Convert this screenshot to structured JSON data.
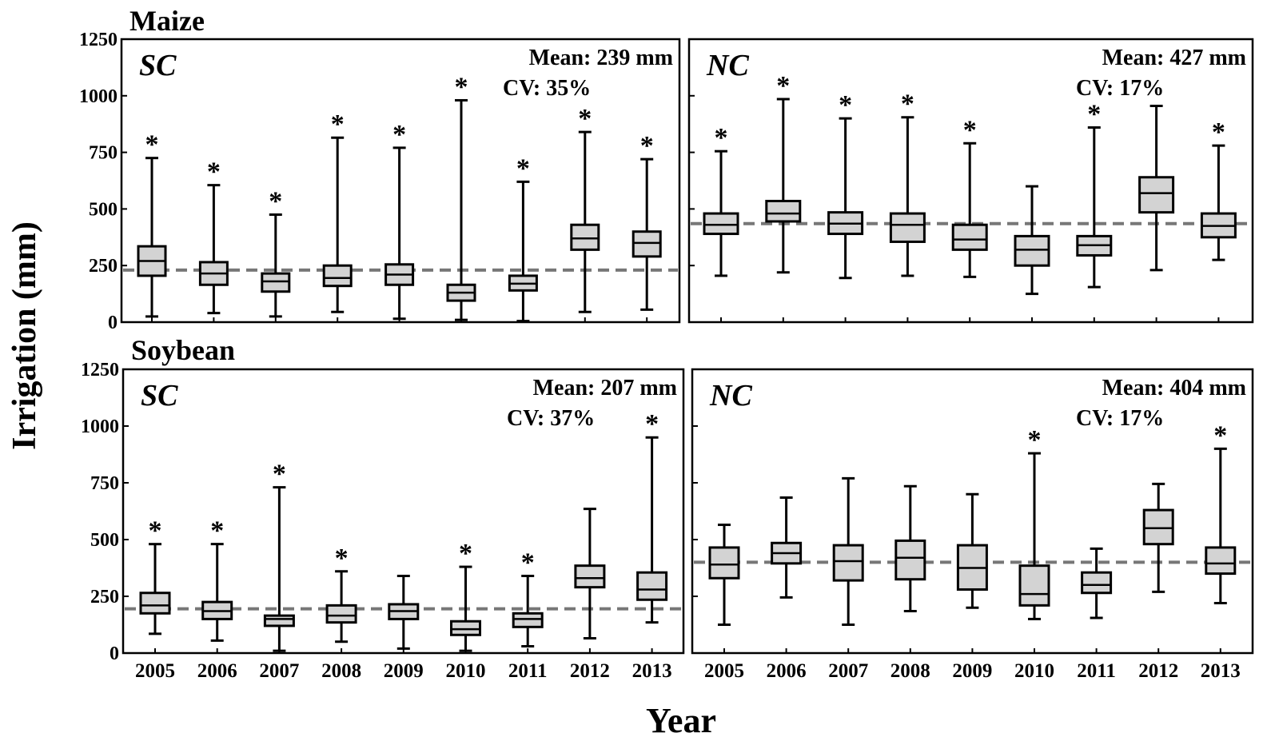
{
  "figure": {
    "ylabel": "Irrigation (mm)",
    "xlabel": "Year",
    "row_titles": [
      "Maize",
      "Soybean"
    ],
    "years": [
      "2005",
      "2006",
      "2007",
      "2008",
      "2009",
      "2010",
      "2011",
      "2012",
      "2013"
    ],
    "yticks": [
      "0",
      "250",
      "500",
      "750",
      "1000",
      "1250"
    ],
    "outlier_marker": "*"
  },
  "chart_data": [
    {
      "type": "box",
      "crop": "Maize",
      "region": "SC",
      "mean_text": "Mean: 239 mm",
      "cv_text": "CV: 35%",
      "mean_line": 230,
      "ylim": [
        0,
        1250
      ],
      "boxes": [
        {
          "year": "2005",
          "min": 25,
          "q1": 205,
          "median": 270,
          "q3": 335,
          "max": 725,
          "outlier": true
        },
        {
          "year": "2006",
          "min": 40,
          "q1": 165,
          "median": 215,
          "q3": 265,
          "max": 605,
          "outlier": true
        },
        {
          "year": "2007",
          "min": 25,
          "q1": 135,
          "median": 180,
          "q3": 215,
          "max": 475,
          "outlier": true
        },
        {
          "year": "2008",
          "min": 45,
          "q1": 160,
          "median": 195,
          "q3": 250,
          "max": 815,
          "outlier": true
        },
        {
          "year": "2009",
          "min": 15,
          "q1": 165,
          "median": 210,
          "q3": 255,
          "max": 770,
          "outlier": true
        },
        {
          "year": "2010",
          "min": 10,
          "q1": 95,
          "median": 130,
          "q3": 165,
          "max": 980,
          "outlier": true
        },
        {
          "year": "2011",
          "min": 5,
          "q1": 140,
          "median": 170,
          "q3": 205,
          "max": 620,
          "outlier": true
        },
        {
          "year": "2012",
          "min": 45,
          "q1": 320,
          "median": 370,
          "q3": 430,
          "max": 840,
          "outlier": true
        },
        {
          "year": "2013",
          "min": 55,
          "q1": 290,
          "median": 350,
          "q3": 400,
          "max": 720,
          "outlier": true
        }
      ]
    },
    {
      "type": "box",
      "crop": "Maize",
      "region": "NC",
      "mean_text": "Mean: 427 mm",
      "cv_text": "CV: 17%",
      "mean_line": 435,
      "ylim": [
        0,
        1250
      ],
      "boxes": [
        {
          "year": "2005",
          "min": 205,
          "q1": 390,
          "median": 430,
          "q3": 480,
          "max": 755,
          "outlier": true
        },
        {
          "year": "2006",
          "min": 220,
          "q1": 445,
          "median": 480,
          "q3": 535,
          "max": 985,
          "outlier": true
        },
        {
          "year": "2007",
          "min": 195,
          "q1": 390,
          "median": 435,
          "q3": 485,
          "max": 900,
          "outlier": true
        },
        {
          "year": "2008",
          "min": 205,
          "q1": 355,
          "median": 430,
          "q3": 480,
          "max": 905,
          "outlier": true
        },
        {
          "year": "2009",
          "min": 200,
          "q1": 320,
          "median": 365,
          "q3": 430,
          "max": 790,
          "outlier": true
        },
        {
          "year": "2010",
          "min": 125,
          "q1": 250,
          "median": 320,
          "q3": 380,
          "max": 600,
          "outlier": false
        },
        {
          "year": "2011",
          "min": 155,
          "q1": 295,
          "median": 340,
          "q3": 380,
          "max": 860,
          "outlier": true
        },
        {
          "year": "2012",
          "min": 230,
          "q1": 485,
          "median": 570,
          "q3": 640,
          "max": 955,
          "outlier": false
        },
        {
          "year": "2013",
          "min": 275,
          "q1": 375,
          "median": 425,
          "q3": 480,
          "max": 780,
          "outlier": true
        }
      ]
    },
    {
      "type": "box",
      "crop": "Soybean",
      "region": "SC",
      "mean_text": "Mean: 207 mm",
      "cv_text": "CV: 37%",
      "mean_line": 195,
      "ylim": [
        0,
        1250
      ],
      "boxes": [
        {
          "year": "2005",
          "min": 85,
          "q1": 175,
          "median": 210,
          "q3": 265,
          "max": 480,
          "outlier": true
        },
        {
          "year": "2006",
          "min": 55,
          "q1": 150,
          "median": 185,
          "q3": 225,
          "max": 480,
          "outlier": true
        },
        {
          "year": "2007",
          "min": 10,
          "q1": 120,
          "median": 150,
          "q3": 165,
          "max": 730,
          "outlier": true
        },
        {
          "year": "2008",
          "min": 50,
          "q1": 135,
          "median": 165,
          "q3": 210,
          "max": 360,
          "outlier": true
        },
        {
          "year": "2009",
          "min": 20,
          "q1": 150,
          "median": 185,
          "q3": 215,
          "max": 340,
          "outlier": false
        },
        {
          "year": "2010",
          "min": 10,
          "q1": 80,
          "median": 105,
          "q3": 140,
          "max": 380,
          "outlier": true
        },
        {
          "year": "2011",
          "min": 30,
          "q1": 115,
          "median": 150,
          "q3": 175,
          "max": 340,
          "outlier": true
        },
        {
          "year": "2012",
          "min": 65,
          "q1": 290,
          "median": 330,
          "q3": 385,
          "max": 635,
          "outlier": false
        },
        {
          "year": "2013",
          "min": 135,
          "q1": 235,
          "median": 280,
          "q3": 355,
          "max": 950,
          "outlier": true
        }
      ]
    },
    {
      "type": "box",
      "crop": "Soybean",
      "region": "NC",
      "mean_text": "Mean: 404 mm",
      "cv_text": "CV: 17%",
      "mean_line": 400,
      "ylim": [
        0,
        1250
      ],
      "boxes": [
        {
          "year": "2005",
          "min": 125,
          "q1": 330,
          "median": 390,
          "q3": 465,
          "max": 565,
          "outlier": false
        },
        {
          "year": "2006",
          "min": 245,
          "q1": 395,
          "median": 440,
          "q3": 485,
          "max": 685,
          "outlier": false
        },
        {
          "year": "2007",
          "min": 125,
          "q1": 320,
          "median": 405,
          "q3": 475,
          "max": 770,
          "outlier": false
        },
        {
          "year": "2008",
          "min": 185,
          "q1": 325,
          "median": 420,
          "q3": 495,
          "max": 735,
          "outlier": false
        },
        {
          "year": "2009",
          "min": 200,
          "q1": 280,
          "median": 375,
          "q3": 475,
          "max": 700,
          "outlier": false
        },
        {
          "year": "2010",
          "min": 150,
          "q1": 210,
          "median": 260,
          "q3": 385,
          "max": 880,
          "outlier": true
        },
        {
          "year": "2011",
          "min": 155,
          "q1": 265,
          "median": 300,
          "q3": 355,
          "max": 460,
          "outlier": false
        },
        {
          "year": "2012",
          "min": 270,
          "q1": 480,
          "median": 550,
          "q3": 630,
          "max": 745,
          "outlier": false
        },
        {
          "year": "2013",
          "min": 220,
          "q1": 350,
          "median": 395,
          "q3": 465,
          "max": 900,
          "outlier": true
        }
      ]
    }
  ]
}
